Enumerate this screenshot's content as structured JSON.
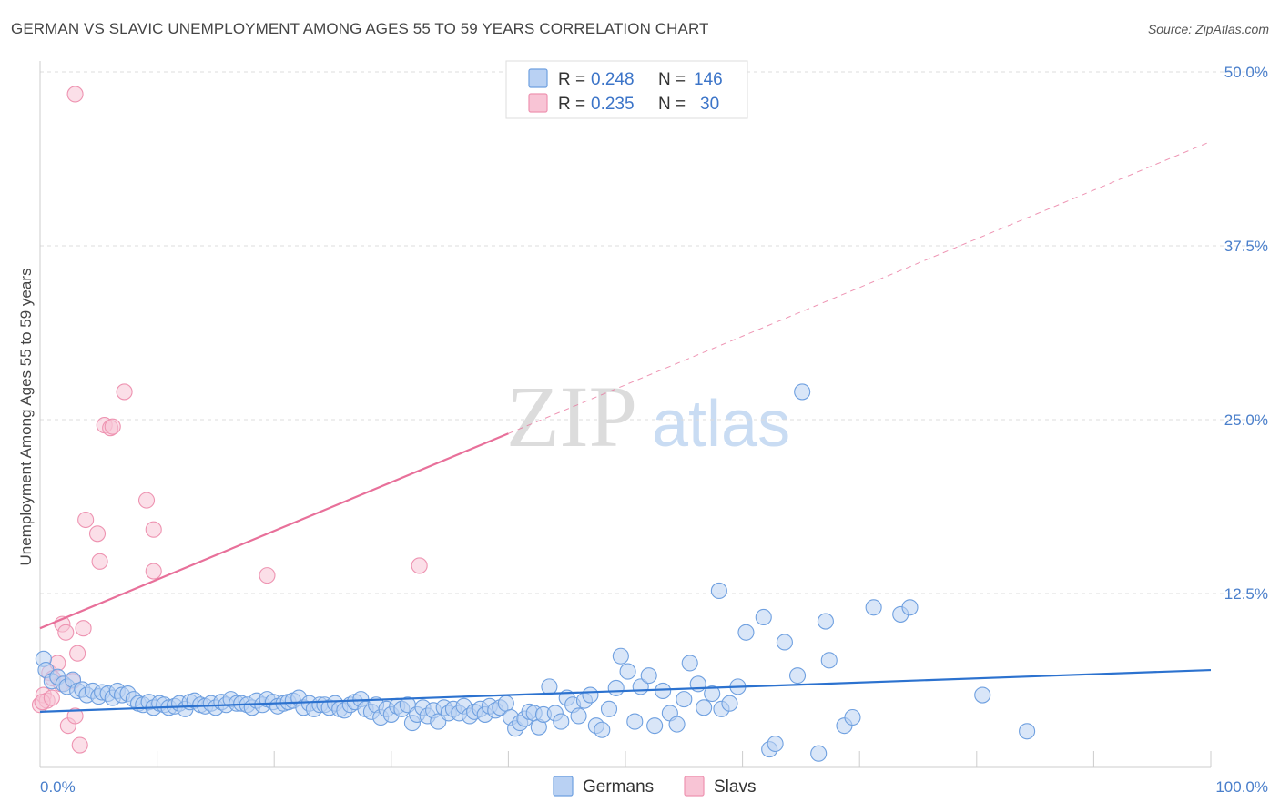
{
  "header": {
    "title": "GERMAN VS SLAVIC UNEMPLOYMENT AMONG AGES 55 TO 59 YEARS CORRELATION CHART",
    "source": "Source: ZipAtlas.com"
  },
  "watermark": {
    "zip": "ZIP",
    "atlas": "atlas"
  },
  "colors": {
    "blue_fill": "#b9d1f3",
    "blue_stroke": "#6fa0e0",
    "blue_line": "#2c72cf",
    "pink_fill": "#f8c4d5",
    "pink_stroke": "#ee93b1",
    "pink_line": "#e8709a",
    "axis_text": "#4a7fcb",
    "grid": "#dddddd"
  },
  "legend": {
    "rows": [
      {
        "r_label": "R =",
        "r_value": "0.248",
        "n_label": "N =",
        "n_value": "146"
      },
      {
        "r_label": "R =",
        "r_value": "0.235",
        "n_label": "N =",
        "n_value": "30"
      }
    ]
  },
  "bottom_legend": [
    "Germans",
    "Slavs"
  ],
  "chart_data": {
    "type": "scatter",
    "title": "GERMAN VS SLAVIC UNEMPLOYMENT AMONG AGES 55 TO 59 YEARS CORRELATION CHART",
    "xlabel": "",
    "ylabel": "Unemployment Among Ages 55 to 59 years",
    "xlim": [
      0,
      100
    ],
    "ylim": [
      0,
      50
    ],
    "x_tick_labels": [
      "0.0%",
      "100.0%"
    ],
    "y_ticks": [
      12.5,
      25.0,
      37.5,
      50.0
    ],
    "y_tick_labels": [
      "12.5%",
      "25.0%",
      "37.5%",
      "50.0%"
    ],
    "grid": true,
    "legend_position": "top-center",
    "series": [
      {
        "name": "Germans",
        "trend": {
          "x0": 0,
          "y0": 4.0,
          "x1": 100,
          "y1": 7.0
        },
        "points": [
          [
            0.3,
            7.8
          ],
          [
            0.5,
            7.0
          ],
          [
            1,
            6.2
          ],
          [
            1.5,
            6.5
          ],
          [
            2,
            6.0
          ],
          [
            2.3,
            5.8
          ],
          [
            2.8,
            6.3
          ],
          [
            3.2,
            5.5
          ],
          [
            3.6,
            5.6
          ],
          [
            4,
            5.2
          ],
          [
            4.5,
            5.5
          ],
          [
            5,
            5.1
          ],
          [
            5.3,
            5.4
          ],
          [
            5.8,
            5.3
          ],
          [
            6.2,
            5.0
          ],
          [
            6.6,
            5.5
          ],
          [
            7,
            5.2
          ],
          [
            7.5,
            5.3
          ],
          [
            8,
            4.9
          ],
          [
            8.4,
            4.6
          ],
          [
            8.8,
            4.5
          ],
          [
            9.3,
            4.7
          ],
          [
            9.7,
            4.3
          ],
          [
            10.2,
            4.6
          ],
          [
            10.6,
            4.5
          ],
          [
            11,
            4.3
          ],
          [
            11.5,
            4.4
          ],
          [
            11.9,
            4.6
          ],
          [
            12.4,
            4.2
          ],
          [
            12.8,
            4.7
          ],
          [
            13.2,
            4.8
          ],
          [
            13.7,
            4.5
          ],
          [
            14.1,
            4.4
          ],
          [
            14.6,
            4.6
          ],
          [
            15,
            4.3
          ],
          [
            15.5,
            4.7
          ],
          [
            15.9,
            4.5
          ],
          [
            16.3,
            4.9
          ],
          [
            16.8,
            4.6
          ],
          [
            17.2,
            4.6
          ],
          [
            17.7,
            4.5
          ],
          [
            18.1,
            4.3
          ],
          [
            18.5,
            4.8
          ],
          [
            19,
            4.5
          ],
          [
            19.4,
            4.9
          ],
          [
            19.9,
            4.7
          ],
          [
            20.3,
            4.4
          ],
          [
            20.8,
            4.6
          ],
          [
            21.2,
            4.7
          ],
          [
            21.6,
            4.8
          ],
          [
            22.1,
            5.0
          ],
          [
            22.5,
            4.3
          ],
          [
            23,
            4.6
          ],
          [
            23.4,
            4.2
          ],
          [
            23.9,
            4.5
          ],
          [
            24.3,
            4.5
          ],
          [
            24.7,
            4.3
          ],
          [
            25.2,
            4.6
          ],
          [
            25.6,
            4.2
          ],
          [
            26,
            4.1
          ],
          [
            26.5,
            4.5
          ],
          [
            26.9,
            4.7
          ],
          [
            27.4,
            4.9
          ],
          [
            27.8,
            4.2
          ],
          [
            28.3,
            4.0
          ],
          [
            28.7,
            4.5
          ],
          [
            29.1,
            3.6
          ],
          [
            29.6,
            4.2
          ],
          [
            30,
            3.8
          ],
          [
            30.5,
            4.4
          ],
          [
            30.9,
            4.2
          ],
          [
            31.4,
            4.5
          ],
          [
            31.8,
            3.2
          ],
          [
            32.2,
            3.8
          ],
          [
            32.7,
            4.3
          ],
          [
            33.1,
            3.7
          ],
          [
            33.6,
            4.1
          ],
          [
            34,
            3.3
          ],
          [
            34.5,
            4.3
          ],
          [
            34.9,
            3.9
          ],
          [
            35.3,
            4.2
          ],
          [
            35.8,
            3.9
          ],
          [
            36.2,
            4.4
          ],
          [
            36.7,
            3.7
          ],
          [
            37.1,
            4.0
          ],
          [
            37.6,
            4.2
          ],
          [
            38,
            3.8
          ],
          [
            38.4,
            4.4
          ],
          [
            38.9,
            4.1
          ],
          [
            39.3,
            4.3
          ],
          [
            39.8,
            4.6
          ],
          [
            40.2,
            3.6
          ],
          [
            40.6,
            2.8
          ],
          [
            41,
            3.2
          ],
          [
            41.4,
            3.5
          ],
          [
            41.8,
            4.0
          ],
          [
            42.2,
            3.9
          ],
          [
            42.6,
            2.9
          ],
          [
            43,
            3.8
          ],
          [
            43.5,
            5.8
          ],
          [
            44,
            3.9
          ],
          [
            44.5,
            3.3
          ],
          [
            45,
            5.0
          ],
          [
            45.5,
            4.5
          ],
          [
            46,
            3.7
          ],
          [
            46.5,
            4.8
          ],
          [
            47,
            5.2
          ],
          [
            47.5,
            3.0
          ],
          [
            48,
            2.7
          ],
          [
            48.6,
            4.2
          ],
          [
            49.2,
            5.7
          ],
          [
            49.6,
            8.0
          ],
          [
            50.2,
            6.9
          ],
          [
            50.8,
            3.3
          ],
          [
            51.3,
            5.8
          ],
          [
            52,
            6.6
          ],
          [
            52.5,
            3.0
          ],
          [
            53.2,
            5.5
          ],
          [
            53.8,
            3.9
          ],
          [
            54.4,
            3.1
          ],
          [
            55,
            4.9
          ],
          [
            55.5,
            7.5
          ],
          [
            56.2,
            6.0
          ],
          [
            56.7,
            4.3
          ],
          [
            57.4,
            5.3
          ],
          [
            58,
            12.7
          ],
          [
            58.2,
            4.2
          ],
          [
            58.9,
            4.6
          ],
          [
            59.6,
            5.8
          ],
          [
            60.3,
            9.7
          ],
          [
            61.8,
            10.8
          ],
          [
            62.3,
            1.3
          ],
          [
            62.8,
            1.7
          ],
          [
            63.6,
            9.0
          ],
          [
            64.7,
            6.6
          ],
          [
            65.1,
            27.0
          ],
          [
            66.5,
            1.0
          ],
          [
            67.1,
            10.5
          ],
          [
            67.4,
            7.7
          ],
          [
            68.7,
            3.0
          ],
          [
            69.4,
            3.6
          ],
          [
            71.2,
            11.5
          ],
          [
            73.5,
            11.0
          ],
          [
            74.3,
            11.5
          ],
          [
            80.5,
            5.2
          ],
          [
            84.3,
            2.6
          ]
        ]
      },
      {
        "name": "Slavs",
        "trend": {
          "x0": 0,
          "y0": 10.0,
          "x1": 100,
          "y1": 45.0,
          "solid_until_x": 40
        },
        "points": [
          [
            0,
            4.5
          ],
          [
            0.3,
            5.2
          ],
          [
            0.6,
            4.8
          ],
          [
            0.8,
            6.8
          ],
          [
            1.1,
            6.4
          ],
          [
            1.5,
            7.5
          ],
          [
            1.8,
            6.0
          ],
          [
            1.9,
            10.3
          ],
          [
            2.2,
            9.7
          ],
          [
            2.4,
            3.0
          ],
          [
            2.8,
            6.2
          ],
          [
            3.0,
            3.7
          ],
          [
            3.2,
            8.2
          ],
          [
            3.4,
            1.6
          ],
          [
            3.7,
            10.0
          ],
          [
            3.9,
            17.8
          ],
          [
            4.9,
            16.8
          ],
          [
            5.1,
            14.8
          ],
          [
            5.5,
            24.6
          ],
          [
            6.0,
            24.4
          ],
          [
            6.2,
            24.5
          ],
          [
            7.2,
            27.0
          ],
          [
            9.1,
            19.2
          ],
          [
            9.7,
            17.1
          ],
          [
            9.7,
            14.1
          ],
          [
            19.4,
            13.8
          ],
          [
            32.4,
            14.5
          ],
          [
            3.0,
            48.4
          ],
          [
            0.2,
            4.7
          ],
          [
            1.0,
            5.0
          ]
        ]
      }
    ]
  }
}
